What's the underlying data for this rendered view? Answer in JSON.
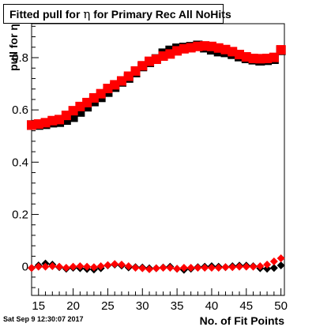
{
  "title": {
    "prefix": "Fitted pull for",
    "symbol": "η",
    "suffix": "for Primary Rec All NoHits"
  },
  "footer": {
    "timestamp": "Sat Sep  9 12:30:07 2017"
  },
  "chart_data": {
    "type": "scatter",
    "title": "Fitted pull for η for Primary Rec All NoHits",
    "xlabel": "No. of Fit Points",
    "ylabel": "pull for η",
    "xlim": [
      14,
      50.5
    ],
    "ylim": [
      -0.11,
      0.93
    ],
    "x_ticks": [
      15,
      20,
      25,
      30,
      35,
      40,
      45,
      50
    ],
    "y_ticks": [
      0,
      0.2,
      0.4,
      0.6,
      0.8
    ],
    "x_tick_labels": [
      "15",
      "20",
      "25",
      "30",
      "35",
      "40",
      "45",
      "50"
    ],
    "y_tick_labels": [
      "0",
      "0.2",
      "0.4",
      "0.6",
      "0.8"
    ],
    "grid": false,
    "series": [
      {
        "role": "sigma",
        "color": "#000000",
        "marker": "square",
        "x": [
          14,
          15,
          16,
          17,
          18,
          19,
          20,
          21,
          22,
          23,
          24,
          25,
          26,
          27,
          28,
          29,
          30,
          31,
          32,
          33,
          34,
          35,
          36,
          37,
          38,
          39,
          40,
          41,
          42,
          43,
          44,
          45,
          46,
          47,
          48,
          49,
          50
        ],
        "y": [
          0.542,
          0.542,
          0.545,
          0.551,
          0.553,
          0.561,
          0.572,
          0.592,
          0.612,
          0.632,
          0.648,
          0.668,
          0.687,
          0.707,
          0.722,
          0.743,
          0.766,
          0.782,
          0.795,
          0.817,
          0.828,
          0.836,
          0.839,
          0.842,
          0.847,
          0.838,
          0.83,
          0.823,
          0.82,
          0.813,
          0.804,
          0.797,
          0.792,
          0.788,
          0.79,
          0.794,
          0.828
        ]
      },
      {
        "role": "sigma",
        "color": "#ff0000",
        "marker": "square",
        "x": [
          14,
          15,
          16,
          17,
          18,
          19,
          20,
          21,
          22,
          23,
          24,
          25,
          26,
          27,
          28,
          29,
          30,
          31,
          32,
          33,
          34,
          35,
          36,
          37,
          38,
          39,
          40,
          41,
          42,
          43,
          44,
          45,
          46,
          47,
          48,
          49,
          50
        ],
        "y": [
          0.542,
          0.546,
          0.551,
          0.559,
          0.563,
          0.579,
          0.597,
          0.613,
          0.628,
          0.646,
          0.662,
          0.682,
          0.696,
          0.711,
          0.729,
          0.749,
          0.769,
          0.786,
          0.794,
          0.806,
          0.814,
          0.826,
          0.834,
          0.838,
          0.843,
          0.845,
          0.843,
          0.837,
          0.831,
          0.823,
          0.812,
          0.803,
          0.797,
          0.796,
          0.797,
          0.801,
          0.83
        ]
      },
      {
        "role": "mean",
        "color": "#000000",
        "marker": "diamond",
        "x": [
          14,
          15,
          16,
          17,
          18,
          19,
          20,
          21,
          22,
          23,
          24,
          25,
          26,
          27,
          28,
          29,
          30,
          31,
          32,
          33,
          34,
          35,
          36,
          37,
          38,
          39,
          40,
          41,
          42,
          43,
          44,
          45,
          46,
          47,
          48,
          49,
          50
        ],
        "y": [
          -0.005,
          0.005,
          0.012,
          0.008,
          -0.002,
          -0.008,
          -0.004,
          -0.006,
          -0.009,
          -0.011,
          -0.006,
          0.005,
          0.008,
          0.004,
          -0.003,
          -0.002,
          -0.003,
          -0.006,
          -0.006,
          -0.003,
          0,
          -0.008,
          -0.012,
          -0.008,
          -0.002,
          0,
          0.002,
          0,
          -0.002,
          0.002,
          0.004,
          0.004,
          0.002,
          -0.006,
          -0.008,
          -0.005,
          0.005
        ]
      },
      {
        "role": "mean",
        "color": "#ff0000",
        "marker": "diamond",
        "x": [
          14,
          15,
          16,
          17,
          18,
          19,
          20,
          21,
          22,
          23,
          24,
          25,
          26,
          27,
          28,
          29,
          30,
          31,
          32,
          33,
          34,
          35,
          36,
          37,
          38,
          39,
          40,
          41,
          42,
          43,
          44,
          45,
          46,
          47,
          48,
          49,
          50
        ],
        "y": [
          -0.005,
          0,
          0,
          0.002,
          0,
          -0.004,
          0,
          0.002,
          0,
          -0.002,
          0.002,
          0.006,
          0.01,
          0.008,
          0.002,
          -0.004,
          -0.006,
          -0.01,
          -0.006,
          -0.004,
          -0.004,
          -0.008,
          -0.004,
          -0.004,
          -0.004,
          -0.004,
          -0.004,
          -0.004,
          -0.002,
          -0.002,
          0,
          0,
          0,
          0.002,
          0.008,
          0.02,
          0.032
        ]
      }
    ]
  }
}
